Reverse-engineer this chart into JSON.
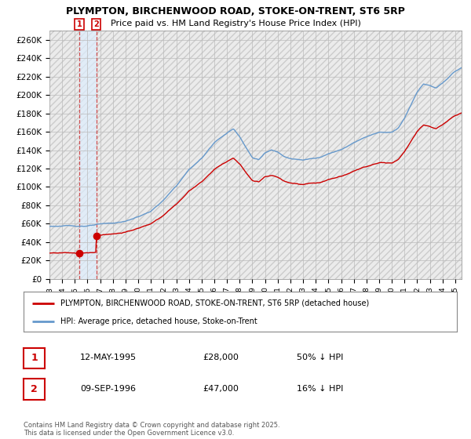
{
  "title": "PLYMPTON, BIRCHENWOOD ROAD, STOKE-ON-TRENT, ST6 5RP",
  "subtitle": "Price paid vs. HM Land Registry's House Price Index (HPI)",
  "legend_label_red": "PLYMPTON, BIRCHENWOOD ROAD, STOKE-ON-TRENT, ST6 5RP (detached house)",
  "legend_label_blue": "HPI: Average price, detached house, Stoke-on-Trent",
  "sale1_date": "12-MAY-1995",
  "sale1_price": "£28,000",
  "sale1_hpi": "50% ↓ HPI",
  "sale2_date": "09-SEP-1996",
  "sale2_price": "£47,000",
  "sale2_hpi": "16% ↓ HPI",
  "footer": "Contains HM Land Registry data © Crown copyright and database right 2025.\nThis data is licensed under the Open Government Licence v3.0.",
  "sale1_year": 1995.36,
  "sale1_value": 28000,
  "sale2_year": 1996.69,
  "sale2_value": 47000,
  "ylim": [
    0,
    270000
  ],
  "xlim_start": 1993,
  "xlim_end": 2025.5,
  "red_color": "#cc0000",
  "blue_color": "#6699cc",
  "bg_color": "#ffffff",
  "grid_color": "#bbbbbb",
  "sale_box_color": "#cc0000",
  "dashed_line_color": "#cc3333",
  "highlight_bg": "#ddeeff",
  "hatch_bg": "#ebebeb"
}
